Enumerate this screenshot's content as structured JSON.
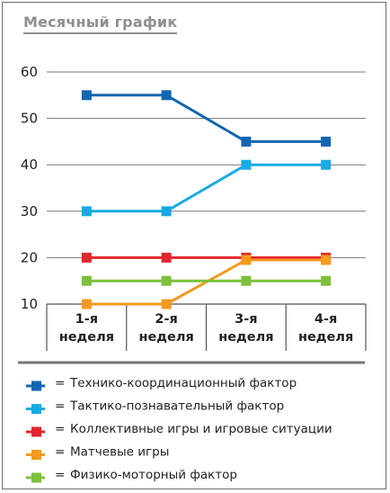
{
  "chart_data": {
    "type": "line",
    "title": "Месячный график",
    "categories": [
      [
        "1-я",
        "неделя"
      ],
      [
        "2-я",
        "неделя"
      ],
      [
        "3-я",
        "неделя"
      ],
      [
        "4-я",
        "неделя"
      ]
    ],
    "ylim": [
      10,
      60
    ],
    "yticks": [
      10,
      20,
      30,
      40,
      50,
      60
    ],
    "grid": true,
    "legend_position": "bottom",
    "legend_marker_text": "=",
    "series": [
      {
        "name": "Технико-координационный фактор",
        "color": "#1266b0",
        "values": [
          55,
          55,
          45,
          45
        ]
      },
      {
        "name": "Тактико-познавательный фактор",
        "color": "#17abe3",
        "values": [
          30,
          30,
          40,
          40
        ]
      },
      {
        "name": "Коллективные игры и игровые ситуации",
        "color": "#e3262d",
        "values": [
          20,
          20,
          20,
          20
        ]
      },
      {
        "name": "Матчевые игры",
        "color": "#f39a1f",
        "values": [
          10,
          10,
          19.5,
          19.5
        ]
      },
      {
        "name": "Физико-моторный фактор",
        "color": "#7cc03c",
        "values": [
          15,
          15,
          15,
          15
        ]
      }
    ]
  }
}
